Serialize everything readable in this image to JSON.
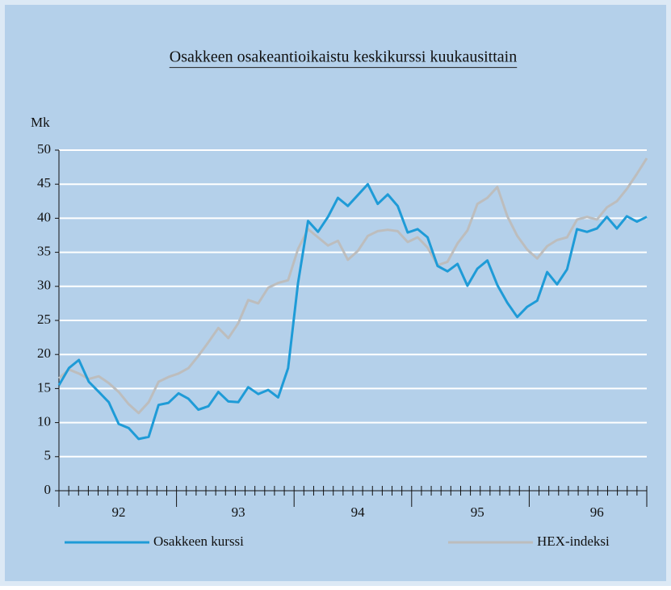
{
  "chart_data": {
    "type": "line",
    "title": "Osakkeen osakeantioikaistu keskikurssi kuukausittain",
    "y_label": "Mk",
    "categories": [
      null,
      null,
      null,
      null,
      null,
      null,
      "92",
      null,
      null,
      null,
      null,
      null,
      null,
      null,
      null,
      null,
      null,
      null,
      "93",
      null,
      null,
      null,
      null,
      null,
      null,
      null,
      null,
      null,
      null,
      null,
      "94",
      null,
      null,
      null,
      null,
      null,
      null,
      null,
      null,
      null,
      null,
      null,
      "95",
      null,
      null,
      null,
      null,
      null,
      null,
      null,
      null,
      null,
      null,
      null,
      "96",
      null,
      null,
      null,
      null,
      null
    ],
    "series": [
      {
        "name": "Osakkeen kurssi",
        "color": "#1e9bd7",
        "values": [
          15.5,
          18,
          19.2,
          16,
          14.5,
          13,
          9.8,
          9.2,
          7.6,
          7.9,
          12.6,
          12.9,
          14.3,
          13.5,
          11.9,
          12.4,
          14.5,
          13.1,
          13,
          15.2,
          14.2,
          14.8,
          13.7,
          18,
          30.5,
          39.6,
          38,
          40.2,
          43,
          41.8,
          43.4,
          45,
          42.1,
          43.5,
          41.8,
          37.9,
          38.4,
          37.2,
          33,
          32.2,
          33.3,
          30.1,
          32.6,
          33.8,
          30.2,
          27.6,
          25.5,
          27,
          27.9,
          32.1,
          30.3,
          32.5,
          38.4,
          38,
          38.5,
          40.2,
          38.5,
          40.3,
          39.5,
          40.2
        ]
      },
      {
        "name": "HEX-indeksi",
        "color": "#bdbdbd",
        "values": [
          16.5,
          17.8,
          17.2,
          16.4,
          16.8,
          15.8,
          14.5,
          12.7,
          11.4,
          13,
          16,
          16.7,
          17.2,
          18,
          19.8,
          21.8,
          23.9,
          22.4,
          24.6,
          28,
          27.5,
          29.8,
          30.5,
          30.9,
          35.5,
          38.4,
          37.2,
          36,
          36.7,
          33.9,
          35.2,
          37.4,
          38.1,
          38.3,
          38.1,
          36.5,
          37.2,
          35.7,
          33.1,
          33.6,
          36.3,
          38.2,
          42.1,
          43,
          44.6,
          40.3,
          37.4,
          35.4,
          34.1,
          35.9,
          36.8,
          37.2,
          39.8,
          40.2,
          39.8,
          41.6,
          42.5,
          44.3,
          46.5,
          48.8
        ]
      }
    ],
    "ylim": [
      0,
      50
    ],
    "yticks": [
      0,
      5,
      10,
      15,
      20,
      25,
      30,
      35,
      40,
      45,
      50
    ],
    "grid": true
  }
}
